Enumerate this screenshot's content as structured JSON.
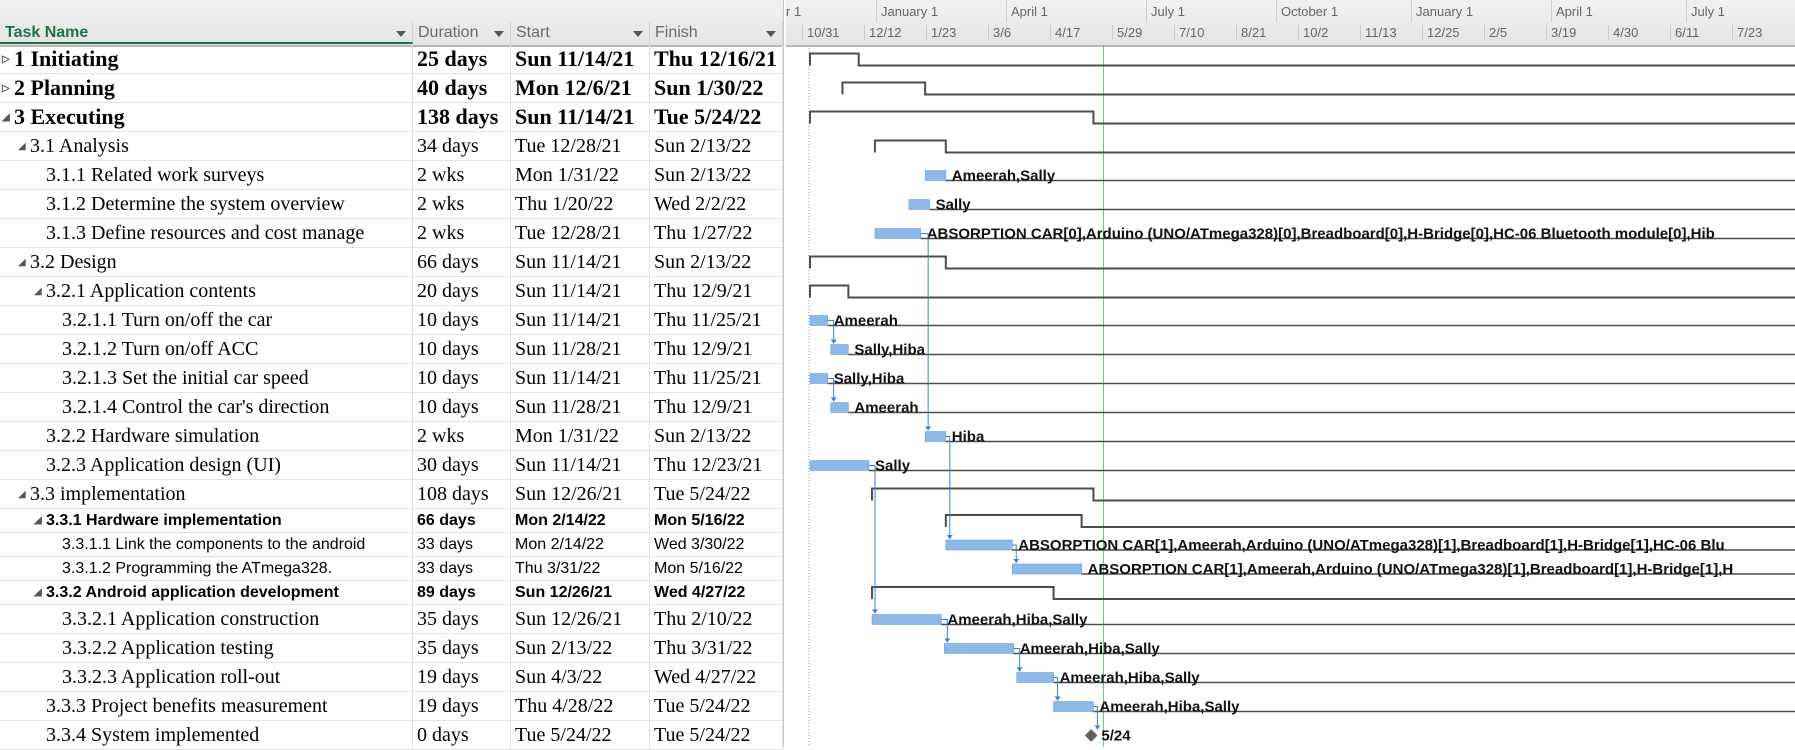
{
  "columns": {
    "task_name": "Task Name",
    "duration": "Duration",
    "start": "Start",
    "finish": "Finish"
  },
  "timescale": {
    "top": [
      "r 1",
      "January 1",
      "April 1",
      "July 1",
      "October 1",
      "January 1",
      "April 1",
      "July 1"
    ],
    "bottom": [
      "10/31",
      "12/12",
      "1/23",
      "3/6",
      "4/17",
      "5/29",
      "7/10",
      "8/21",
      "10/2",
      "11/13",
      "12/25",
      "2/5",
      "3/19",
      "4/30",
      "6/11",
      "7/23"
    ]
  },
  "tasks": [
    {
      "name": "1  Initiating",
      "duration": "25 days",
      "start": "Sun 11/14/21",
      "finish": "Thu 12/16/21",
      "expander": "collapsed",
      "style": "big"
    },
    {
      "name": "2 Planning",
      "duration": "40 days",
      "start": "Mon 12/6/21",
      "finish": "Sun 1/30/22",
      "expander": "collapsed",
      "style": "big"
    },
    {
      "name": "3  Executing",
      "duration": "138 days",
      "start": "Sun 11/14/21",
      "finish": "Tue 5/24/22",
      "expander": "expanded",
      "style": "big"
    },
    {
      "name": "3.1 Analysis",
      "duration": "34 days",
      "start": "Tue 12/28/21",
      "finish": "Sun 2/13/22",
      "expander": "expanded",
      "style": "med"
    },
    {
      "name": "3.1.1 Related work surveys",
      "duration": "2 wks",
      "start": "Mon 1/31/22",
      "finish": "Sun 2/13/22",
      "expander": "",
      "style": "med"
    },
    {
      "name": "3.1.2 Determine the system overview",
      "duration": "2 wks",
      "start": "Thu 1/20/22",
      "finish": "Wed 2/2/22",
      "expander": "",
      "style": "med"
    },
    {
      "name": "3.1.3 Define resources and cost manage",
      "duration": "2 wks",
      "start": "Tue 12/28/21",
      "finish": "Thu 1/27/22",
      "expander": "",
      "style": "med"
    },
    {
      "name": "3.2 Design",
      "duration": "66 days",
      "start": "Sun 11/14/21",
      "finish": "Sun 2/13/22",
      "expander": "expanded",
      "style": "med"
    },
    {
      "name": "3.2.1 Application contents",
      "duration": "20 days",
      "start": "Sun 11/14/21",
      "finish": "Thu 12/9/21",
      "expander": "expanded",
      "style": "med"
    },
    {
      "name": "3.2.1.1 Turn on/off the car",
      "duration": "10 days",
      "start": "Sun 11/14/21",
      "finish": "Thu 11/25/21",
      "expander": "",
      "style": "med"
    },
    {
      "name": "3.2.1.2 Turn on/off ACC",
      "duration": "10 days",
      "start": "Sun 11/28/21",
      "finish": "Thu 12/9/21",
      "expander": "",
      "style": "med"
    },
    {
      "name": "3.2.1.3 Set the initial car speed",
      "duration": "10 days",
      "start": "Sun 11/14/21",
      "finish": "Thu 11/25/21",
      "expander": "",
      "style": "med"
    },
    {
      "name": "3.2.1.4 Control the car's direction",
      "duration": "10 days",
      "start": "Sun 11/28/21",
      "finish": "Thu 12/9/21",
      "expander": "",
      "style": "med"
    },
    {
      "name": "3.2.2 Hardware simulation",
      "duration": "2 wks",
      "start": "Mon 1/31/22",
      "finish": "Sun 2/13/22",
      "expander": "",
      "style": "med"
    },
    {
      "name": "3.2.3 Application design (UI)",
      "duration": "30 days",
      "start": "Sun 11/14/21",
      "finish": "Thu 12/23/21",
      "expander": "",
      "style": "med"
    },
    {
      "name": "3.3 implementation",
      "duration": "108 days",
      "start": "Sun 12/26/21",
      "finish": "Tue 5/24/22",
      "expander": "expanded",
      "style": "med"
    },
    {
      "name": "3.3.1 Hardware implementation",
      "duration": "66 days",
      "start": "Mon 2/14/22",
      "finish": "Mon 5/16/22",
      "expander": "expanded",
      "style": "sansb"
    },
    {
      "name": "3.3.1.1 Link the components to the android",
      "duration": "33 days",
      "start": "Mon 2/14/22",
      "finish": "Wed 3/30/22",
      "expander": "",
      "style": "sans"
    },
    {
      "name": "3.3.1.2 Programming the ATmega328.",
      "duration": "33 days",
      "start": "Thu 3/31/22",
      "finish": "Mon 5/16/22",
      "expander": "",
      "style": "sans"
    },
    {
      "name": "3.3.2 Android application development",
      "duration": "89 days",
      "start": "Sun 12/26/21",
      "finish": "Wed 4/27/22",
      "expander": "expanded",
      "style": "sansb"
    },
    {
      "name": "3.3.2.1 Application construction",
      "duration": "35 days",
      "start": "Sun 12/26/21",
      "finish": "Thu 2/10/22",
      "expander": "",
      "style": "med"
    },
    {
      "name": "3.3.2.2 Application testing",
      "duration": "35 days",
      "start": "Sun 2/13/22",
      "finish": "Thu 3/31/22",
      "expander": "",
      "style": "med"
    },
    {
      "name": "3.3.2.3 Application roll-out",
      "duration": "19 days",
      "start": "Sun 4/3/22",
      "finish": "Wed 4/27/22",
      "expander": "",
      "style": "med"
    },
    {
      "name": "3.3.3  Project benefits measurement",
      "duration": "19 days",
      "start": "Thu 4/28/22",
      "finish": "Tue 5/24/22",
      "expander": "",
      "style": "med"
    },
    {
      "name": "3.3.4 System implemented",
      "duration": "0 days",
      "start": "Tue 5/24/22",
      "finish": "Tue 5/24/22",
      "expander": "",
      "style": "med"
    }
  ],
  "resources": [
    "",
    "",
    "",
    "",
    "Ameerah,Sally",
    "Sally",
    "ABSORPTION CAR[0],Arduino (UNO/ATmega328)[0],Breadboard[0],H-Bridge[0],HC-06 Bluetooth module[0],Hib",
    "",
    "",
    "Ameerah",
    "Sally,Hiba",
    "Sally,Hiba",
    "Ameerah",
    "Hiba",
    "Sally",
    "",
    "",
    "ABSORPTION CAR[1],Ameerah,Arduino (UNO/ATmega328)[1],Breadboard[1],H-Bridge[1],HC-06 Blu",
    "ABSORPTION CAR[1],Ameerah,Arduino (UNO/ATmega328)[1],Breadboard[1],H-Bridge[1],H",
    "",
    "Ameerah,Hiba,Sally",
    "Ameerah,Hiba,Sally",
    "Ameerah,Hiba,Sally",
    "Ameerah,Hiba,Sally",
    "5/24"
  ],
  "colors": {
    "bar": "#8db8e8",
    "bar_border": "#5b9bd5",
    "summary": "#4d4d4d",
    "link": "#3a7fd1",
    "today_line": "#6bbf6b",
    "milestone": "#606060",
    "task_header": "#217346"
  }
}
